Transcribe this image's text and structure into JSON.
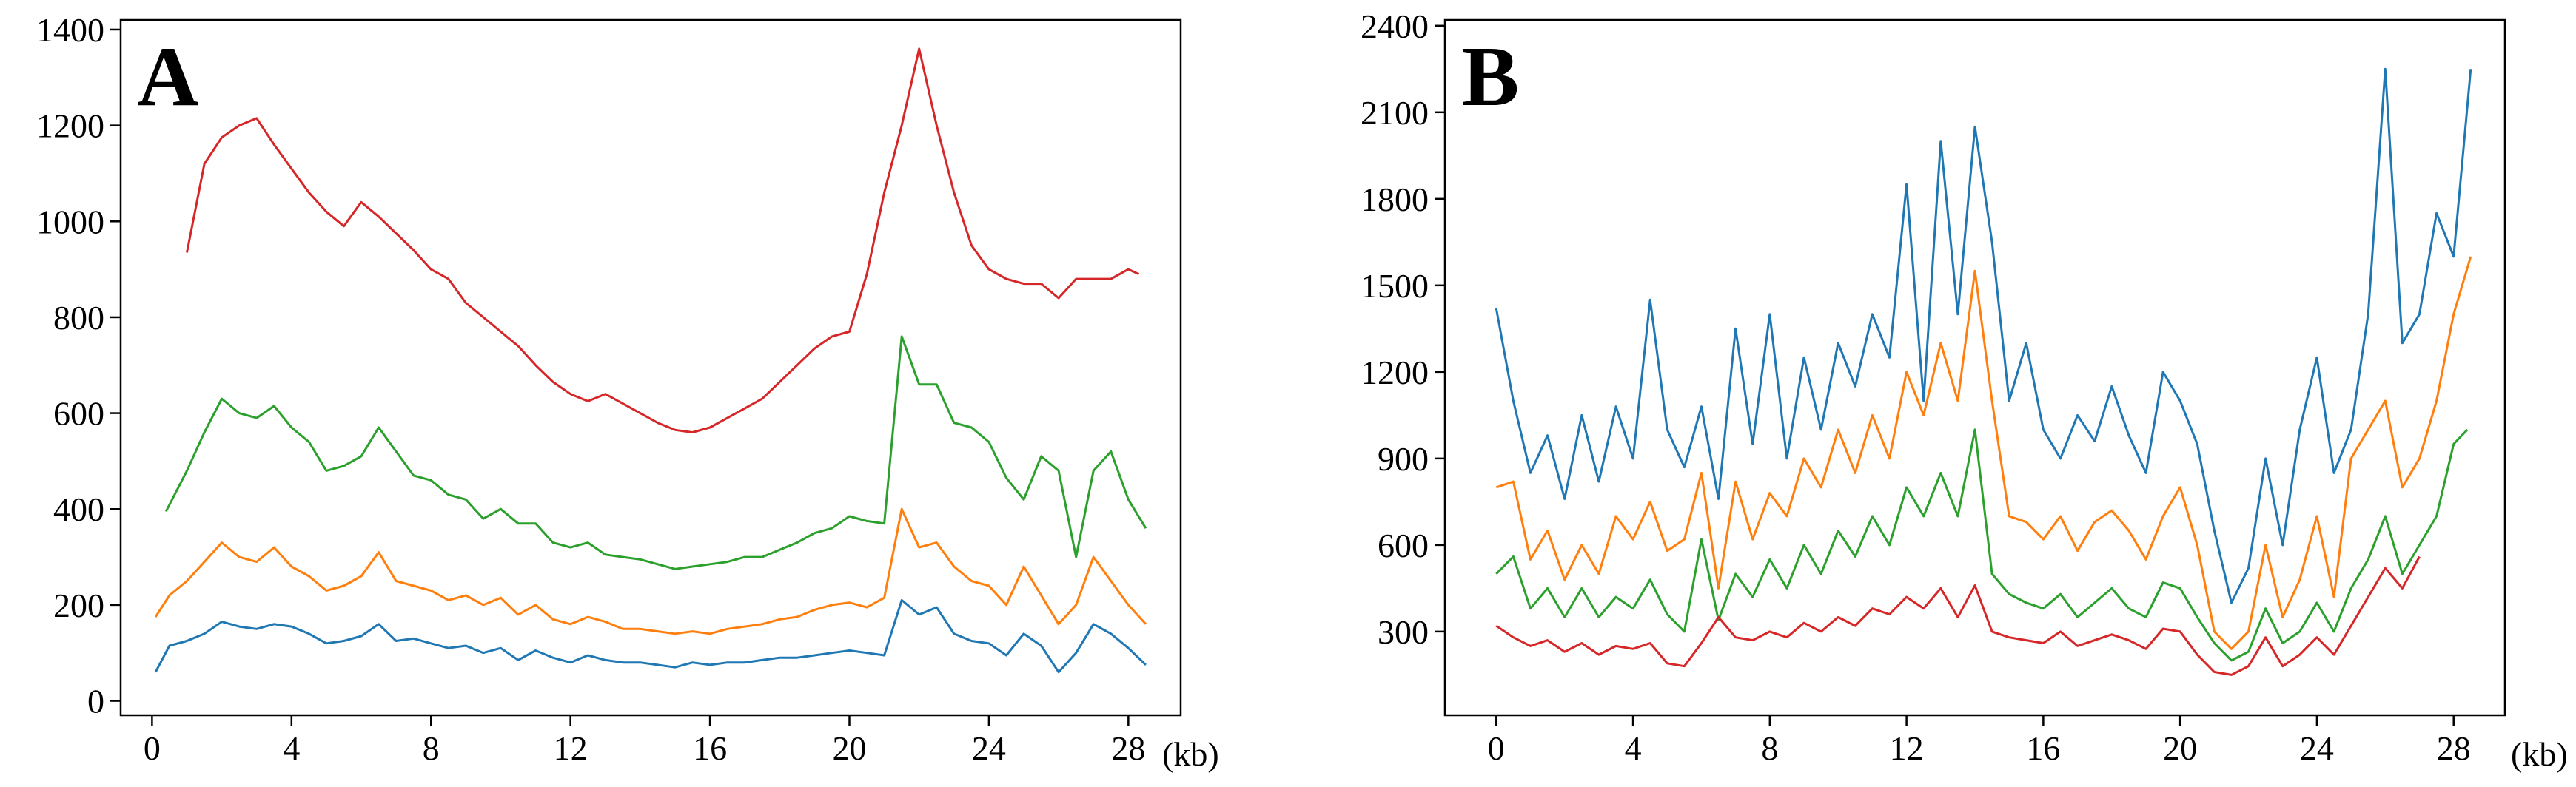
{
  "chart_data": [
    {
      "type": "line",
      "panel_label": "A",
      "xlabel": "(kb)",
      "ylabel": "",
      "xlim": [
        -0.9,
        29.5
      ],
      "ylim": [
        -30,
        1420
      ],
      "xticks": [
        0,
        4,
        8,
        12,
        16,
        20,
        24,
        28
      ],
      "xtick_labels": [
        "0",
        "4",
        "8",
        "12",
        "16",
        "20",
        "24",
        "28"
      ],
      "yticks": [
        0,
        200,
        400,
        600,
        800,
        1000,
        1200,
        1400
      ],
      "ytick_labels": [
        "0",
        "200",
        "400",
        "600",
        "800",
        "1000",
        "1200",
        "1400"
      ],
      "series": [
        {
          "name": "blue",
          "color": "#1f77b4",
          "x": [
            0.1,
            0.5,
            1,
            1.5,
            2,
            2.5,
            3,
            3.5,
            4,
            4.5,
            5,
            5.5,
            6,
            6.5,
            7,
            7.5,
            8,
            8.5,
            9,
            9.5,
            10,
            10.5,
            11,
            11.5,
            12,
            12.5,
            13,
            13.5,
            14,
            14.5,
            15,
            15.5,
            16,
            16.5,
            17,
            17.5,
            18,
            18.5,
            19,
            19.5,
            20,
            20.5,
            21,
            21.5,
            22,
            22.5,
            23,
            23.5,
            24,
            24.5,
            25,
            25.5,
            26,
            26.5,
            27,
            27.5,
            28,
            28.5
          ],
          "y": [
            60,
            115,
            125,
            140,
            165,
            155,
            150,
            160,
            155,
            140,
            120,
            125,
            135,
            160,
            125,
            130,
            120,
            110,
            115,
            100,
            110,
            85,
            105,
            90,
            80,
            95,
            85,
            80,
            80,
            75,
            70,
            80,
            75,
            80,
            80,
            85,
            90,
            90,
            95,
            100,
            105,
            100,
            95,
            210,
            180,
            195,
            140,
            125,
            120,
            95,
            140,
            115,
            60,
            100,
            160,
            140,
            110,
            75
          ]
        },
        {
          "name": "orange",
          "color": "#ff7f0e",
          "x": [
            0.1,
            0.5,
            1,
            1.5,
            2,
            2.5,
            3,
            3.5,
            4,
            4.5,
            5,
            5.5,
            6,
            6.5,
            7,
            7.5,
            8,
            8.5,
            9,
            9.5,
            10,
            10.5,
            11,
            11.5,
            12,
            12.5,
            13,
            13.5,
            14,
            14.5,
            15,
            15.5,
            16,
            16.5,
            17,
            17.5,
            18,
            18.5,
            19,
            19.5,
            20,
            20.5,
            21,
            21.5,
            22,
            22.5,
            23,
            23.5,
            24,
            24.5,
            25,
            25.5,
            26,
            26.5,
            27,
            27.5,
            28,
            28.5
          ],
          "y": [
            175,
            220,
            250,
            290,
            330,
            300,
            290,
            320,
            280,
            260,
            230,
            240,
            260,
            310,
            250,
            240,
            230,
            210,
            220,
            200,
            215,
            180,
            200,
            170,
            160,
            175,
            165,
            150,
            150,
            145,
            140,
            145,
            140,
            150,
            155,
            160,
            170,
            175,
            190,
            200,
            205,
            195,
            215,
            400,
            320,
            330,
            280,
            250,
            240,
            200,
            280,
            220,
            160,
            200,
            300,
            250,
            200,
            160
          ]
        },
        {
          "name": "green",
          "color": "#2ca02c",
          "x": [
            0.4,
            1,
            1.5,
            2,
            2.5,
            3,
            3.5,
            4,
            4.5,
            5,
            5.5,
            6,
            6.5,
            7,
            7.5,
            8,
            8.5,
            9,
            9.5,
            10,
            10.5,
            11,
            11.5,
            12,
            12.5,
            13,
            13.5,
            14,
            14.5,
            15,
            15.5,
            16,
            16.5,
            17,
            17.5,
            18,
            18.5,
            19,
            19.5,
            20,
            20.5,
            21,
            21.5,
            22,
            22.5,
            23,
            23.5,
            24,
            24.5,
            25,
            25.5,
            26,
            26.5,
            27,
            27.5,
            28,
            28.5
          ],
          "y": [
            395,
            480,
            560,
            630,
            600,
            590,
            615,
            570,
            540,
            480,
            490,
            510,
            570,
            520,
            470,
            460,
            430,
            420,
            380,
            400,
            370,
            370,
            330,
            320,
            330,
            305,
            300,
            295,
            285,
            275,
            280,
            285,
            290,
            300,
            300,
            315,
            330,
            350,
            360,
            385,
            375,
            370,
            760,
            660,
            660,
            580,
            570,
            540,
            465,
            420,
            510,
            480,
            300,
            480,
            520,
            420,
            360
          ]
        },
        {
          "name": "red",
          "color": "#d62728",
          "x": [
            1,
            1.5,
            2,
            2.5,
            3,
            3.5,
            4,
            4.5,
            5,
            5.5,
            6,
            6.5,
            7,
            7.5,
            8,
            8.5,
            9,
            9.5,
            10,
            10.5,
            11,
            11.5,
            12,
            12.5,
            13,
            13.5,
            14,
            14.5,
            15,
            15.5,
            16,
            16.5,
            17,
            17.5,
            18,
            18.5,
            19,
            19.5,
            20,
            20.5,
            21,
            21.5,
            22,
            22.5,
            23,
            23.5,
            24,
            24.5,
            25,
            25.5,
            26,
            26.5,
            27,
            27.5,
            28,
            28.3
          ],
          "y": [
            935,
            1120,
            1175,
            1200,
            1215,
            1160,
            1110,
            1060,
            1020,
            990,
            1040,
            1010,
            975,
            940,
            900,
            880,
            830,
            800,
            770,
            740,
            700,
            665,
            640,
            625,
            640,
            620,
            600,
            580,
            565,
            560,
            570,
            590,
            610,
            630,
            665,
            700,
            735,
            760,
            770,
            890,
            1060,
            1200,
            1360,
            1200,
            1060,
            950,
            900,
            880,
            870,
            870,
            840,
            880,
            880,
            880,
            900,
            890
          ]
        }
      ]
    },
    {
      "type": "line",
      "panel_label": "B",
      "xlabel": "(kb)",
      "ylabel": "",
      "xlim": [
        -1.5,
        29.5
      ],
      "ylim": [
        10,
        2420
      ],
      "xticks": [
        0,
        4,
        8,
        12,
        16,
        20,
        24,
        28
      ],
      "xtick_labels": [
        "0",
        "4",
        "8",
        "12",
        "16",
        "20",
        "24",
        "28"
      ],
      "yticks": [
        300,
        600,
        900,
        1200,
        1500,
        1800,
        2100,
        2400
      ],
      "ytick_labels": [
        "300",
        "600",
        "900",
        "1200",
        "1500",
        "1800",
        "2100",
        "2400"
      ],
      "series": [
        {
          "name": "blue",
          "color": "#1f77b4",
          "x": [
            0,
            0.5,
            1,
            1.5,
            2,
            2.5,
            3,
            3.5,
            4,
            4.5,
            5,
            5.5,
            6,
            6.5,
            7,
            7.5,
            8,
            8.5,
            9,
            9.5,
            10,
            10.5,
            11,
            11.5,
            12,
            12.5,
            13,
            13.5,
            14,
            14.5,
            15,
            15.5,
            16,
            16.5,
            17,
            17.5,
            18,
            18.5,
            19,
            19.5,
            20,
            20.5,
            21,
            21.5,
            22,
            22.5,
            23,
            23.5,
            24,
            24.5,
            25,
            25.5,
            26,
            26.5,
            27,
            27.5,
            28,
            28.5
          ],
          "y": [
            1420,
            1100,
            850,
            980,
            760,
            1050,
            820,
            1080,
            900,
            1450,
            1000,
            870,
            1080,
            760,
            1350,
            950,
            1400,
            900,
            1250,
            1000,
            1300,
            1150,
            1400,
            1250,
            1850,
            1100,
            2000,
            1400,
            2050,
            1650,
            1100,
            1300,
            1000,
            900,
            1050,
            960,
            1150,
            980,
            850,
            1200,
            1100,
            950,
            650,
            400,
            520,
            900,
            600,
            1000,
            1250,
            850,
            1000,
            1400,
            2250,
            1300,
            1400,
            1750,
            1600,
            2250
          ]
        },
        {
          "name": "orange",
          "color": "#ff7f0e",
          "x": [
            0,
            0.5,
            1,
            1.5,
            2,
            2.5,
            3,
            3.5,
            4,
            4.5,
            5,
            5.5,
            6,
            6.5,
            7,
            7.5,
            8,
            8.5,
            9,
            9.5,
            10,
            10.5,
            11,
            11.5,
            12,
            12.5,
            13,
            13.5,
            14,
            14.5,
            15,
            15.5,
            16,
            16.5,
            17,
            17.5,
            18,
            18.5,
            19,
            19.5,
            20,
            20.5,
            21,
            21.5,
            22,
            22.5,
            23,
            23.5,
            24,
            24.5,
            25,
            25.5,
            26,
            26.5,
            27,
            27.5,
            28,
            28.5
          ],
          "y": [
            800,
            820,
            550,
            650,
            480,
            600,
            500,
            700,
            620,
            750,
            580,
            620,
            850,
            450,
            820,
            620,
            780,
            700,
            900,
            800,
            1000,
            850,
            1050,
            900,
            1200,
            1050,
            1300,
            1100,
            1550,
            1100,
            700,
            680,
            620,
            700,
            580,
            680,
            720,
            650,
            550,
            700,
            800,
            600,
            300,
            240,
            300,
            600,
            350,
            480,
            700,
            420,
            900,
            1000,
            1100,
            800,
            900,
            1100,
            1400,
            1600
          ]
        },
        {
          "name": "green",
          "color": "#2ca02c",
          "x": [
            0,
            0.5,
            1,
            1.5,
            2,
            2.5,
            3,
            3.5,
            4,
            4.5,
            5,
            5.5,
            6,
            6.5,
            7,
            7.5,
            8,
            8.5,
            9,
            9.5,
            10,
            10.5,
            11,
            11.5,
            12,
            12.5,
            13,
            13.5,
            14,
            14.5,
            15,
            15.5,
            16,
            16.5,
            17,
            17.5,
            18,
            18.5,
            19,
            19.5,
            20,
            20.5,
            21,
            21.5,
            22,
            22.5,
            23,
            23.5,
            24,
            24.5,
            25,
            25.5,
            26,
            26.5,
            27,
            27.5,
            28,
            28.4
          ],
          "y": [
            500,
            560,
            380,
            450,
            350,
            450,
            350,
            420,
            380,
            480,
            360,
            300,
            620,
            340,
            500,
            420,
            550,
            450,
            600,
            500,
            650,
            560,
            700,
            600,
            800,
            700,
            850,
            700,
            1000,
            500,
            430,
            400,
            380,
            430,
            350,
            400,
            450,
            380,
            350,
            470,
            450,
            350,
            260,
            200,
            230,
            380,
            260,
            300,
            400,
            300,
            450,
            550,
            700,
            500,
            600,
            700,
            950,
            1000
          ]
        },
        {
          "name": "red",
          "color": "#d62728",
          "x": [
            0,
            0.5,
            1,
            1.5,
            2,
            2.5,
            3,
            3.5,
            4,
            4.5,
            5,
            5.5,
            6,
            6.5,
            7,
            7.5,
            8,
            8.5,
            9,
            9.5,
            10,
            10.5,
            11,
            11.5,
            12,
            12.5,
            13,
            13.5,
            14,
            14.5,
            15,
            15.5,
            16,
            16.5,
            17,
            17.5,
            18,
            18.5,
            19,
            19.5,
            20,
            20.5,
            21,
            21.5,
            22,
            22.5,
            23,
            23.5,
            24,
            24.5,
            25,
            25.5,
            26,
            26.5,
            27
          ],
          "y": [
            320,
            280,
            250,
            270,
            230,
            260,
            220,
            250,
            240,
            260,
            190,
            180,
            260,
            350,
            280,
            270,
            300,
            280,
            330,
            300,
            350,
            320,
            380,
            360,
            420,
            380,
            450,
            350,
            460,
            300,
            280,
            270,
            260,
            300,
            250,
            270,
            290,
            270,
            240,
            310,
            300,
            220,
            160,
            150,
            180,
            280,
            180,
            220,
            280,
            220,
            320,
            420,
            520,
            450,
            560
          ]
        }
      ]
    }
  ]
}
